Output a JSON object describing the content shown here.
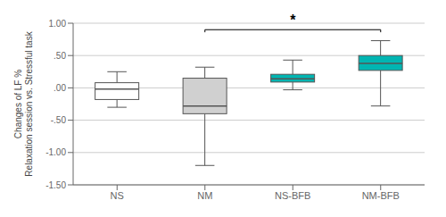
{
  "chart_data": {
    "type": "box",
    "categories": [
      "NS",
      "NM",
      "NS-BFB",
      "NM-BFB"
    ],
    "boxes": [
      {
        "q1": -0.18,
        "median": -0.02,
        "q3": 0.08,
        "whisker_low": -0.3,
        "whisker_high": 0.25
      },
      {
        "q1": -0.4,
        "median": -0.28,
        "q3": 0.15,
        "whisker_low": -1.2,
        "whisker_high": 0.32
      },
      {
        "q1": 0.09,
        "median": 0.14,
        "q3": 0.21,
        "whisker_low": -0.03,
        "whisker_high": 0.43
      },
      {
        "q1": 0.27,
        "median": 0.38,
        "q3": 0.5,
        "whisker_low": -0.28,
        "whisker_high": 0.73
      }
    ],
    "colors": [
      "#ffffff",
      "#d0d0d0",
      "#00b5b2",
      "#00b5b2"
    ],
    "ylabel": [
      "Changes of LF %",
      "Relaxation session vs. Stressful task"
    ],
    "ylim": [
      -1.5,
      1.0
    ],
    "yticks": [
      {
        "value": -1.5,
        "label": "-1.50"
      },
      {
        "value": -1.0,
        "label": "-1.00"
      },
      {
        "value": -0.5,
        "label": "-.50"
      },
      {
        "value": 0.0,
        "label": ".00"
      },
      {
        "value": 0.5,
        "label": ".50"
      },
      {
        "value": 1.0,
        "label": "1.00"
      }
    ],
    "grid": true,
    "annotations": [
      {
        "text": "*",
        "x1": "NM",
        "x2": "NM-BFB",
        "y": 0.9
      }
    ]
  }
}
